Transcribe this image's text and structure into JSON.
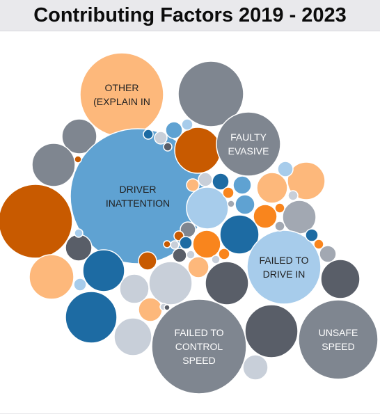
{
  "title": "Contributing Factors 2019 - 2023",
  "colors": {
    "orange_light": "#fdb87b",
    "orange_dark": "#c85a00",
    "orange_bright": "#f9851d",
    "blue_mid": "#5fa2d2",
    "blue_dark": "#1d6ba3",
    "blue_light": "#a7cceb",
    "gray_mid": "#7f8690",
    "gray_dark": "#595e68",
    "gray_light": "#c8cfd9",
    "gray_pale": "#a2a8b2"
  },
  "chart_data": {
    "type": "bubble",
    "series": [
      {
        "label_lines": [
          "OTHER",
          "(EXPLAIN IN"
        ],
        "color": "orange_light",
        "text_color": "#222222"
      },
      {
        "label_lines": [
          "DRIVER",
          "INATTENTION"
        ],
        "color": "blue_mid",
        "text_color": "#1f1f1f"
      },
      {
        "label_lines": [
          "FAULTY",
          "EVASIVE"
        ],
        "color": "gray_mid",
        "text_color": "#ffffff"
      },
      {
        "label_lines": [
          "FAILED TO",
          "DRIVE IN"
        ],
        "color": "blue_light",
        "text_color": "#1f1f1f"
      },
      {
        "label_lines": [
          "FAILED TO",
          "CONTROL",
          "SPEED"
        ],
        "color": "gray_mid",
        "text_color": "#ffffff"
      },
      {
        "label_lines": [
          "UNSAFE",
          "SPEED"
        ],
        "color": "gray_mid",
        "text_color": "#ffffff"
      }
    ]
  }
}
